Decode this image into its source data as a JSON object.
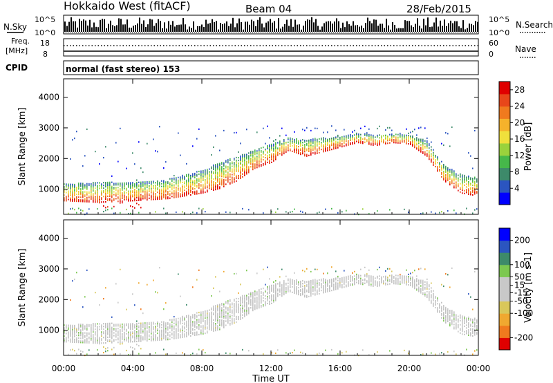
{
  "header": {
    "station": "Hokkaido West (fitACF)",
    "beam": "Beam 04",
    "date": "28/Feb/2015"
  },
  "status_panel": {
    "nsky_label": "N.Sky",
    "nsearch_label": "N.Search",
    "noise_scale_top": "10^5",
    "noise_scale_bottom": "10^0",
    "freq_label": "Freq.",
    "freq_unit": "[MHz]",
    "freq_ticks": [
      "18",
      "8"
    ],
    "nave_label": "Nave",
    "nave_ticks": [
      "60",
      "0"
    ],
    "cpid_label": "CPID",
    "cpid_value": "normal (fast stereo) 153"
  },
  "colors": {
    "power": [
      "#0000ff",
      "#2b55c0",
      "#3d8a6a",
      "#46b84a",
      "#9ad23c",
      "#f0e03c",
      "#f5b22b",
      "#f07a1e",
      "#e8461a",
      "#e00000"
    ],
    "velocity": [
      "#e00000",
      "#f07a1e",
      "#f0a830",
      "#d9c75a",
      "#c8c8c8",
      "#c8c8c8",
      "#7cc850",
      "#3d8a6a",
      "#2b55c0",
      "#0000ff"
    ],
    "ground_scatter": "#c0c0c0"
  },
  "chart_data": [
    {
      "type": "heatmap",
      "title": "",
      "xlabel": "Time UT",
      "ylabel": "Slant Range [km]",
      "x_ticks": [
        "00:00",
        "04:00",
        "08:00",
        "12:00",
        "16:00",
        "20:00",
        "00:00"
      ],
      "xlim_hours": [
        0,
        24
      ],
      "ylim": [
        180,
        4600
      ],
      "y_ticks": [
        1000,
        2000,
        3000,
        4000
      ],
      "colorbar": {
        "label": "Power [dB]",
        "ticks": [
          4,
          8,
          12,
          16,
          20,
          24,
          28
        ],
        "range": [
          0,
          30
        ]
      },
      "main_scatter_band": {
        "time_h": [
          0,
          2,
          4,
          6,
          8,
          9,
          10,
          11,
          12,
          13,
          14,
          15,
          16,
          17,
          18,
          19,
          20,
          21,
          22,
          23,
          24
        ],
        "lower_km": [
          650,
          600,
          650,
          720,
          900,
          1050,
          1300,
          1700,
          1900,
          2300,
          2100,
          2250,
          2400,
          2550,
          2450,
          2550,
          2500,
          2100,
          1300,
          900,
          800
        ],
        "upper_km": [
          1200,
          1250,
          1250,
          1350,
          1650,
          1900,
          2100,
          2300,
          2500,
          2700,
          2650,
          2700,
          2750,
          2850,
          2800,
          2850,
          2800,
          2600,
          1800,
          1500,
          1400
        ]
      }
    },
    {
      "type": "heatmap",
      "title": "",
      "xlabel": "Time UT",
      "ylabel": "Slant Range [km]",
      "x_ticks": [
        "00:00",
        "04:00",
        "08:00",
        "12:00",
        "16:00",
        "20:00",
        "00:00"
      ],
      "xlim_hours": [
        0,
        24
      ],
      "ylim": [
        180,
        4600
      ],
      "y_ticks": [
        1000,
        2000,
        3000,
        4000
      ],
      "colorbar": {
        "label": "Velocity [m s-1]",
        "ticks": [
          200,
          100,
          50,
          15,
          -15,
          -50,
          -100,
          -200
        ],
        "range": [
          -250,
          250
        ]
      }
    }
  ]
}
